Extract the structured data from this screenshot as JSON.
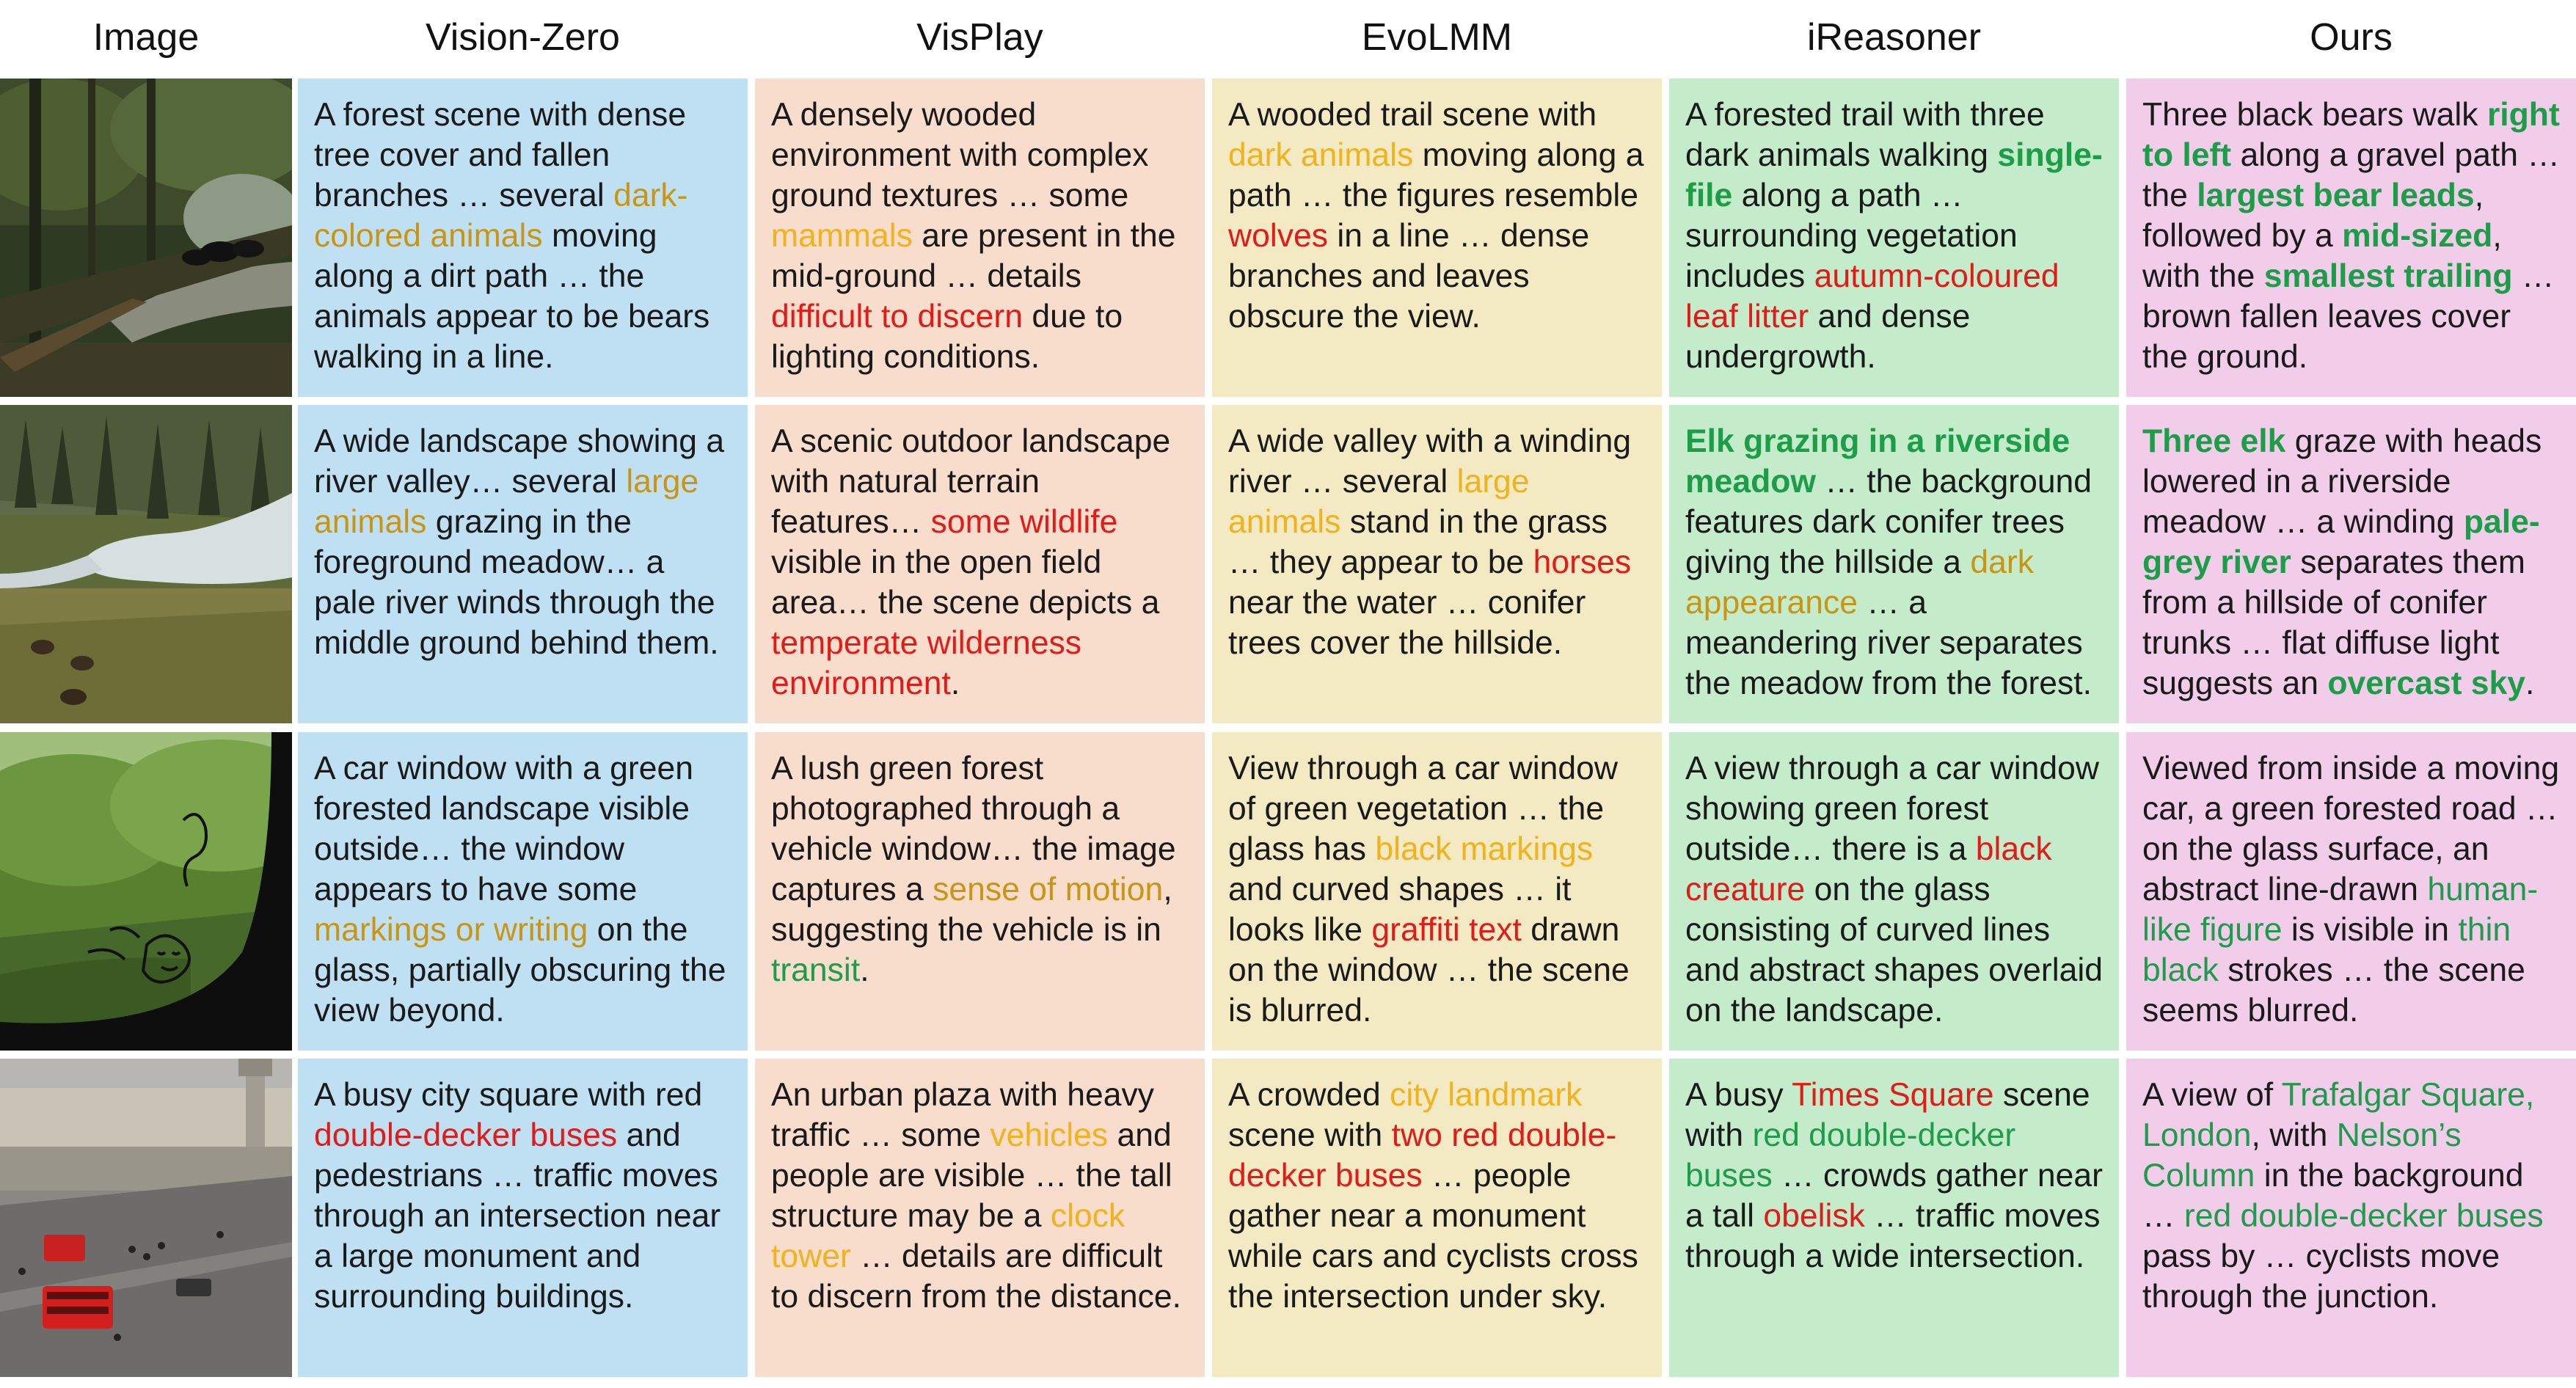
{
  "headers": [
    "Image",
    "Vision-Zero",
    "VisPlay",
    "EvoLMM",
    "iReasoner",
    "Ours"
  ],
  "palette": {
    "vision_zero_bg": "#bfe0f2",
    "visplay_bg": "#f8dccc",
    "evolmm_bg": "#f3eac4",
    "ireasoner_bg": "#c4ecca",
    "ours_bg": "#f1cdea",
    "vague": "#c99514",
    "vague_bright": "#f1b21b",
    "wrong": "#e11b17",
    "correct": "#1f9b4c"
  },
  "images": [
    {
      "name": "forest-bears-photo"
    },
    {
      "name": "river-valley-elk-photo"
    },
    {
      "name": "car-window-graffiti-photo"
    },
    {
      "name": "trafalgar-square-photo"
    }
  ],
  "rows": [
    {
      "cells": [
        {
          "segs": [
            {
              "t": "A forest scene with dense tree cover and fallen branches … several "
            },
            {
              "t": "dark-colored animals",
              "c": "or"
            },
            {
              "t": " moving along a dirt path … the animals appear to be bears walking in a line."
            }
          ]
        },
        {
          "segs": [
            {
              "t": "A densely wooded environment with complex ground textures … some "
            },
            {
              "t": "mammals",
              "c": "ye"
            },
            {
              "t": " are present in the mid-ground … details "
            },
            {
              "t": "difficult to discern",
              "c": "rd"
            },
            {
              "t": " due to lighting conditions."
            }
          ]
        },
        {
          "segs": [
            {
              "t": "A wooded trail scene with "
            },
            {
              "t": "dark animals",
              "c": "ye"
            },
            {
              "t": " moving along a path … the figures resemble "
            },
            {
              "t": "wolves",
              "c": "rd"
            },
            {
              "t": " in a line … dense branches and leaves obscure the view."
            }
          ]
        },
        {
          "segs": [
            {
              "t": "A forested trail with three dark animals walking "
            },
            {
              "t": "single-file",
              "c": "bgr"
            },
            {
              "t": " along a path … surrounding vegetation includes "
            },
            {
              "t": "autumn-coloured leaf litter",
              "c": "rd"
            },
            {
              "t": " and dense undergrowth."
            }
          ]
        },
        {
          "segs": [
            {
              "t": "Three black bears walk "
            },
            {
              "t": "right to left",
              "c": "bgr"
            },
            {
              "t": " along a gravel path … the "
            },
            {
              "t": "largest bear leads",
              "c": "bgr"
            },
            {
              "t": ", followed by a "
            },
            {
              "t": "mid-sized",
              "c": "bgr"
            },
            {
              "t": ", with the "
            },
            {
              "t": "smallest trailing",
              "c": "bgr"
            },
            {
              "t": " … brown fallen leaves cover the ground."
            }
          ]
        }
      ]
    },
    {
      "cells": [
        {
          "segs": [
            {
              "t": "A wide landscape showing a river valley… several "
            },
            {
              "t": "large animals",
              "c": "or"
            },
            {
              "t": " grazing in the foreground meadow… a pale river winds through the middle ground behind them."
            }
          ]
        },
        {
          "segs": [
            {
              "t": "A scenic outdoor landscape with natural terrain features… "
            },
            {
              "t": "some wildlife",
              "c": "rd"
            },
            {
              "t": " visible in the open field area… the scene depicts a "
            },
            {
              "t": "temperate wilderness environment",
              "c": "rd"
            },
            {
              "t": "."
            }
          ]
        },
        {
          "segs": [
            {
              "t": "A wide valley with a winding river … several "
            },
            {
              "t": "large animals",
              "c": "ye"
            },
            {
              "t": " stand in the grass … they appear to be "
            },
            {
              "t": "horses",
              "c": "rd"
            },
            {
              "t": " near the water … conifer trees cover the hillside."
            }
          ]
        },
        {
          "segs": [
            {
              "t": "Elk grazing in a riverside meadow",
              "c": "bgr"
            },
            {
              "t": " … the background features dark conifer trees giving the hillside a "
            },
            {
              "t": "dark appearance",
              "c": "or"
            },
            {
              "t": " … a meandering river separates the meadow from the forest."
            }
          ]
        },
        {
          "segs": [
            {
              "t": "Three elk",
              "c": "bgr"
            },
            {
              "t": " graze with heads lowered in a riverside meadow … a winding "
            },
            {
              "t": "pale-grey river",
              "c": "bgr"
            },
            {
              "t": " separates them from a hillside of conifer trunks … flat diffuse light suggests an "
            },
            {
              "t": "overcast sky",
              "c": "bgr"
            },
            {
              "t": "."
            }
          ]
        }
      ]
    },
    {
      "cells": [
        {
          "segs": [
            {
              "t": "A car window with a green forested landscape visible outside… the window appears to have some "
            },
            {
              "t": "markings or writing",
              "c": "or"
            },
            {
              "t": " on the glass, partially obscuring the view beyond."
            }
          ]
        },
        {
          "segs": [
            {
              "t": "A lush green forest photographed through a vehicle window… the image captures a "
            },
            {
              "t": "sense of motion",
              "c": "or"
            },
            {
              "t": ", suggesting the vehicle is in "
            },
            {
              "t": "transit",
              "c": "gr"
            },
            {
              "t": "."
            }
          ]
        },
        {
          "segs": [
            {
              "t": "View through a car window of green vegetation … the glass has "
            },
            {
              "t": "black markings",
              "c": "ye"
            },
            {
              "t": " and curved shapes … it looks like "
            },
            {
              "t": "graffiti text",
              "c": "rd"
            },
            {
              "t": " drawn on the window … the scene is blurred."
            }
          ]
        },
        {
          "segs": [
            {
              "t": "A view through a car window showing green forest outside… there is a "
            },
            {
              "t": "black creature",
              "c": "rd"
            },
            {
              "t": " on the glass consisting of curved lines and abstract shapes overlaid on the landscape."
            }
          ]
        },
        {
          "segs": [
            {
              "t": "Viewed from inside a moving car, a green forested road … on the glass surface, an abstract line-drawn "
            },
            {
              "t": "human-like figure",
              "c": "gr"
            },
            {
              "t": " is visible in "
            },
            {
              "t": "thin black",
              "c": "gr"
            },
            {
              "t": " strokes … the scene seems blurred."
            }
          ]
        }
      ]
    },
    {
      "cells": [
        {
          "segs": [
            {
              "t": "A busy city square with red "
            },
            {
              "t": "double-decker buses",
              "c": "rd"
            },
            {
              "t": " and pedestrians … traffic moves through an intersection near a large monument and surrounding buildings."
            }
          ]
        },
        {
          "segs": [
            {
              "t": "An urban plaza with heavy traffic … some "
            },
            {
              "t": "vehicles",
              "c": "ye"
            },
            {
              "t": " and people are visible … the tall structure may be a "
            },
            {
              "t": "clock tower",
              "c": "ye"
            },
            {
              "t": " … details are difficult to discern from the distance."
            }
          ]
        },
        {
          "segs": [
            {
              "t": "A crowded "
            },
            {
              "t": "city landmark",
              "c": "ye"
            },
            {
              "t": " scene with "
            },
            {
              "t": "two red double-decker buses",
              "c": "rd"
            },
            {
              "t": " … people gather near a monument while cars and cyclists cross the intersection under sky."
            }
          ]
        },
        {
          "segs": [
            {
              "t": "A busy "
            },
            {
              "t": "Times Square",
              "c": "rd"
            },
            {
              "t": " scene with "
            },
            {
              "t": "red double-decker buses",
              "c": "gr"
            },
            {
              "t": " … crowds gather near a tall "
            },
            {
              "t": "obelisk",
              "c": "rd"
            },
            {
              "t": " … traffic moves through a wide intersection."
            }
          ]
        },
        {
          "segs": [
            {
              "t": "A view of "
            },
            {
              "t": "Trafalgar Square, London",
              "c": "gr"
            },
            {
              "t": ", with "
            },
            {
              "t": "Nelson’s Column",
              "c": "gr"
            },
            {
              "t": " in the background … "
            },
            {
              "t": "red double-decker buses",
              "c": "gr"
            },
            {
              "t": " pass by … cyclists move through the junction."
            }
          ]
        }
      ]
    }
  ]
}
